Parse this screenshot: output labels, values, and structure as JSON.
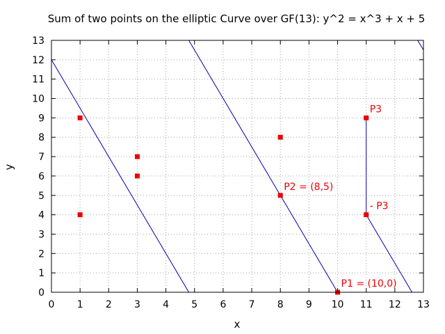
{
  "chart_data": {
    "type": "scatter",
    "title": "Sum of two points on the elliptic Curve over GF(13): y^2 = x^3 + x + 5",
    "xlabel": "x",
    "ylabel": "y",
    "xlim": [
      0,
      13
    ],
    "ylim": [
      0,
      13
    ],
    "xticks": [
      0,
      1,
      2,
      3,
      4,
      5,
      6,
      7,
      8,
      9,
      10,
      11,
      12,
      13
    ],
    "yticks": [
      0,
      1,
      2,
      3,
      4,
      5,
      6,
      7,
      8,
      9,
      10,
      11,
      12,
      13
    ],
    "grid": true,
    "point_color": "#ee0000",
    "line_color": "#0000aa",
    "points": [
      {
        "x": 1,
        "y": 4
      },
      {
        "x": 1,
        "y": 9
      },
      {
        "x": 3,
        "y": 6
      },
      {
        "x": 3,
        "y": 7
      },
      {
        "x": 8,
        "y": 5
      },
      {
        "x": 8,
        "y": 8
      },
      {
        "x": 10,
        "y": 0
      },
      {
        "x": 11,
        "y": 4
      },
      {
        "x": 11,
        "y": 9
      }
    ],
    "line_segments": [
      [
        [
          0,
          12
        ],
        [
          4.8,
          0
        ]
      ],
      [
        [
          4.8,
          13
        ],
        [
          10,
          0
        ]
      ],
      [
        [
          11,
          4
        ],
        [
          12.6,
          0
        ]
      ],
      [
        [
          12.8,
          13
        ],
        [
          13,
          12.5
        ]
      ],
      [
        [
          11,
          4
        ],
        [
          11,
          9
        ]
      ]
    ],
    "annotations": [
      {
        "text": "P1 = (10,0)",
        "x": 10,
        "y": 0
      },
      {
        "text": "P2 = (8,5)",
        "x": 8,
        "y": 5
      },
      {
        "text": "P3",
        "x": 11,
        "y": 9
      },
      {
        "text": "- P3",
        "x": 11,
        "y": 4
      }
    ]
  }
}
